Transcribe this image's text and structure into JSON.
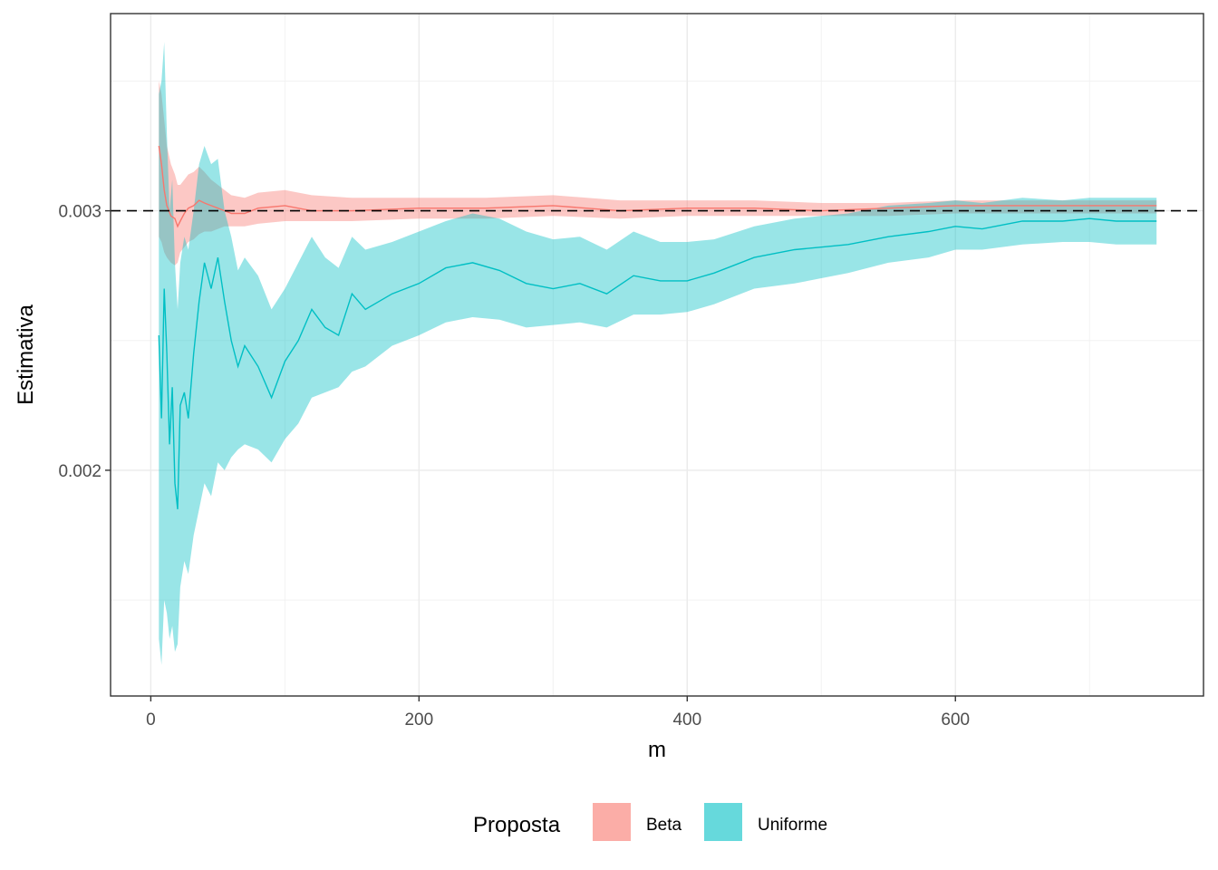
{
  "chart_data": {
    "type": "line",
    "title": "",
    "xlabel": "m",
    "ylabel": "Estimativa",
    "xlim": [
      -30,
      785
    ],
    "ylim": [
      0.00113,
      0.00376
    ],
    "x_ticks": [
      0,
      200,
      400,
      600
    ],
    "x_tick_labels": [
      "0",
      "200",
      "400",
      "600"
    ],
    "y_ticks": [
      0.002,
      0.003
    ],
    "y_tick_labels": [
      "0.002",
      "0.003"
    ],
    "grid": true,
    "reference_line": {
      "y": 0.003,
      "style": "dashed",
      "color": "#000000"
    },
    "legend": {
      "title": "Proposta",
      "position": "bottom"
    },
    "series": [
      {
        "name": "Beta",
        "color": "#F8766D",
        "x": [
          6,
          8,
          10,
          12,
          15,
          18,
          20,
          22,
          25,
          28,
          32,
          36,
          40,
          45,
          50,
          55,
          60,
          70,
          80,
          100,
          120,
          150,
          200,
          250,
          300,
          350,
          400,
          450,
          500,
          550,
          600,
          650,
          700,
          750
        ],
        "y": [
          0.00325,
          0.00318,
          0.00308,
          0.00302,
          0.00298,
          0.00297,
          0.00294,
          0.00296,
          0.00299,
          0.00301,
          0.00302,
          0.00304,
          0.00303,
          0.00302,
          0.00301,
          0.003,
          0.00299,
          0.00299,
          0.00301,
          0.00302,
          0.003,
          0.003,
          0.00301,
          0.00301,
          0.00302,
          0.003,
          0.00301,
          0.00301,
          0.003,
          0.00301,
          0.00302,
          0.00302,
          0.00302,
          0.00302
        ],
        "lower": [
          0.0029,
          0.00288,
          0.00284,
          0.00282,
          0.0028,
          0.00279,
          0.0028,
          0.00284,
          0.00286,
          0.00288,
          0.00289,
          0.00291,
          0.00292,
          0.00292,
          0.00293,
          0.00294,
          0.00294,
          0.00294,
          0.00295,
          0.00296,
          0.00296,
          0.00296,
          0.00297,
          0.00297,
          0.00298,
          0.00297,
          0.00298,
          0.00298,
          0.00298,
          0.00298,
          0.00299,
          0.00299,
          0.00299,
          0.00299
        ],
        "upper": [
          0.0035,
          0.00345,
          0.00335,
          0.00325,
          0.00318,
          0.00314,
          0.0031,
          0.0031,
          0.00312,
          0.00314,
          0.00315,
          0.00317,
          0.00315,
          0.00312,
          0.0031,
          0.00308,
          0.00306,
          0.00305,
          0.00307,
          0.00308,
          0.00306,
          0.00305,
          0.00305,
          0.00305,
          0.00306,
          0.00304,
          0.00304,
          0.00304,
          0.00303,
          0.00303,
          0.00304,
          0.00304,
          0.00304,
          0.00304
        ]
      },
      {
        "name": "Uniforme",
        "color": "#00BFC4",
        "x": [
          6,
          8,
          10,
          12,
          14,
          16,
          18,
          20,
          22,
          25,
          28,
          32,
          36,
          40,
          45,
          50,
          55,
          60,
          65,
          70,
          80,
          90,
          100,
          110,
          120,
          130,
          140,
          150,
          160,
          180,
          200,
          220,
          240,
          260,
          280,
          300,
          320,
          340,
          360,
          380,
          400,
          420,
          450,
          480,
          500,
          520,
          550,
          580,
          600,
          620,
          650,
          680,
          700,
          720,
          750
        ],
        "y": [
          0.00252,
          0.0022,
          0.0027,
          0.00245,
          0.0021,
          0.00232,
          0.00195,
          0.00185,
          0.00225,
          0.0023,
          0.0022,
          0.00245,
          0.00265,
          0.0028,
          0.0027,
          0.00282,
          0.00265,
          0.0025,
          0.0024,
          0.00248,
          0.0024,
          0.00228,
          0.00242,
          0.0025,
          0.00262,
          0.00255,
          0.00252,
          0.00268,
          0.00262,
          0.00268,
          0.00272,
          0.00278,
          0.0028,
          0.00277,
          0.00272,
          0.0027,
          0.00272,
          0.00268,
          0.00275,
          0.00273,
          0.00273,
          0.00276,
          0.00282,
          0.00285,
          0.00286,
          0.00287,
          0.0029,
          0.00292,
          0.00294,
          0.00293,
          0.00296,
          0.00296,
          0.00297,
          0.00296,
          0.00296
        ],
        "lower": [
          0.00135,
          0.00125,
          0.0015,
          0.00145,
          0.00135,
          0.0014,
          0.0013,
          0.00133,
          0.00155,
          0.00165,
          0.0016,
          0.00175,
          0.00185,
          0.00195,
          0.0019,
          0.00203,
          0.002,
          0.00205,
          0.00208,
          0.0021,
          0.00208,
          0.00203,
          0.00212,
          0.00218,
          0.00228,
          0.0023,
          0.00232,
          0.00238,
          0.0024,
          0.00248,
          0.00252,
          0.00257,
          0.00259,
          0.00258,
          0.00255,
          0.00256,
          0.00257,
          0.00255,
          0.0026,
          0.0026,
          0.00261,
          0.00264,
          0.0027,
          0.00272,
          0.00274,
          0.00276,
          0.0028,
          0.00282,
          0.00285,
          0.00285,
          0.00287,
          0.00288,
          0.00288,
          0.00287,
          0.00287
        ],
        "upper": [
          0.00345,
          0.0035,
          0.00365,
          0.0033,
          0.003,
          0.00312,
          0.0028,
          0.00262,
          0.0028,
          0.0029,
          0.00285,
          0.003,
          0.00318,
          0.00325,
          0.00318,
          0.0032,
          0.003,
          0.0029,
          0.00277,
          0.00282,
          0.00275,
          0.00262,
          0.0027,
          0.0028,
          0.0029,
          0.00282,
          0.00278,
          0.0029,
          0.00285,
          0.00288,
          0.00292,
          0.00296,
          0.00299,
          0.00297,
          0.00292,
          0.00289,
          0.0029,
          0.00285,
          0.00292,
          0.00288,
          0.00288,
          0.00289,
          0.00294,
          0.00297,
          0.00298,
          0.00299,
          0.00302,
          0.00303,
          0.00304,
          0.00303,
          0.00305,
          0.00304,
          0.00305,
          0.00305,
          0.00305
        ]
      }
    ]
  }
}
